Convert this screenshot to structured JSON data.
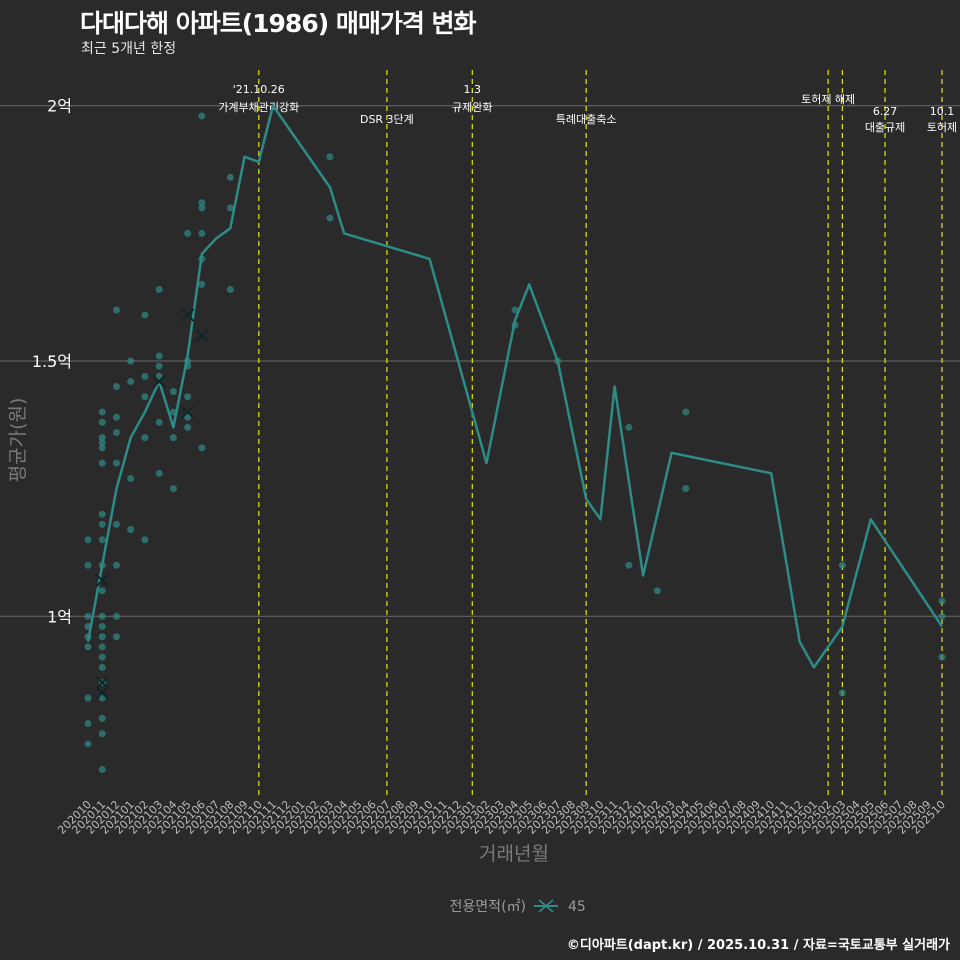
{
  "title": "다대다해 아파트(1986) 매매가격 변화",
  "subtitle": "최근 5개년 한정",
  "footer": "©디아파트(dapt.kr) / 2025.10.31 / 자료=국토교통부 실거래가",
  "colors": {
    "background": "#2b2a2b",
    "series": "#2e8b88",
    "event_line": "#e6e600",
    "grid": "#6b6b6b",
    "text": "#ffffff",
    "axis_text": "#bbbbbb"
  },
  "chart_data": {
    "type": "line",
    "title": "다대다해 아파트(1986) 매매가격 변화",
    "xlabel": "거래년월",
    "ylabel": "평균가(원)",
    "ylim": [
      0.65,
      2.07
    ],
    "y_unit": "억",
    "y_ticks": [
      {
        "value": 1.0,
        "label": "1억"
      },
      {
        "value": 1.5,
        "label": "1.5억"
      },
      {
        "value": 2.0,
        "label": "2억"
      }
    ],
    "categories": [
      "202010",
      "202011",
      "202012",
      "202101",
      "202102",
      "202103",
      "202104",
      "202105",
      "202106",
      "202107",
      "202108",
      "202109",
      "202110",
      "202111",
      "202112",
      "202201",
      "202202",
      "202203",
      "202204",
      "202205",
      "202206",
      "202207",
      "202208",
      "202209",
      "202210",
      "202211",
      "202212",
      "202301",
      "202302",
      "202303",
      "202304",
      "202305",
      "202306",
      "202307",
      "202308",
      "202309",
      "202310",
      "202311",
      "202312",
      "202401",
      "202402",
      "202403",
      "202404",
      "202405",
      "202406",
      "202407",
      "202408",
      "202409",
      "202410",
      "202411",
      "202412",
      "202501",
      "202502",
      "202503",
      "202504",
      "202505",
      "202506",
      "202507",
      "202508",
      "202509",
      "202510"
    ],
    "legend": {
      "title": "전용면적(㎡)",
      "entries": [
        "45"
      ],
      "position": "bottom"
    },
    "series": [
      {
        "name": "45",
        "line": [
          [
            "202010",
            0.95
          ],
          [
            "202011",
            1.1
          ],
          [
            "202012",
            1.25
          ],
          [
            "202101",
            1.35
          ],
          [
            "202102",
            1.4
          ],
          [
            "202103",
            1.46
          ],
          [
            "202104",
            1.37
          ],
          [
            "202105",
            1.51
          ],
          [
            "202106",
            1.71
          ],
          [
            "202107",
            1.74
          ],
          [
            "202108",
            1.76
          ],
          [
            "202109",
            1.9
          ],
          [
            "202110",
            1.89
          ],
          [
            "202111",
            2.0
          ],
          [
            "202203",
            1.84
          ],
          [
            "202204",
            1.75
          ],
          [
            "202210",
            1.7
          ],
          [
            "202302",
            1.3
          ],
          [
            "202304",
            1.58
          ],
          [
            "202305",
            1.65
          ],
          [
            "202307",
            1.5
          ],
          [
            "202309",
            1.23
          ],
          [
            "202310",
            1.19
          ],
          [
            "202311",
            1.45
          ],
          [
            "202401",
            1.08
          ],
          [
            "202403",
            1.32
          ],
          [
            "202410",
            1.28
          ],
          [
            "202412",
            0.95
          ],
          [
            "202501",
            0.9
          ],
          [
            "202503",
            0.98
          ],
          [
            "202505",
            1.19
          ],
          [
            "202510",
            0.98
          ]
        ],
        "points": [
          [
            "202010",
            0.75
          ],
          [
            "202010",
            0.79
          ],
          [
            "202010",
            0.84
          ],
          [
            "202010",
            0.94
          ],
          [
            "202010",
            0.96
          ],
          [
            "202010",
            0.98
          ],
          [
            "202010",
            1.0
          ],
          [
            "202010",
            1.1
          ],
          [
            "202010",
            1.15
          ],
          [
            "202011",
            0.7
          ],
          [
            "202011",
            0.77
          ],
          [
            "202011",
            0.8
          ],
          [
            "202011",
            0.84
          ],
          [
            "202011",
            0.87
          ],
          [
            "202011",
            0.9
          ],
          [
            "202011",
            0.92
          ],
          [
            "202011",
            0.94
          ],
          [
            "202011",
            0.96
          ],
          [
            "202011",
            0.98
          ],
          [
            "202011",
            1.0
          ],
          [
            "202011",
            1.05
          ],
          [
            "202011",
            1.1
          ],
          [
            "202011",
            1.15
          ],
          [
            "202011",
            1.18
          ],
          [
            "202011",
            1.2
          ],
          [
            "202011",
            1.3
          ],
          [
            "202011",
            1.33
          ],
          [
            "202011",
            1.34
          ],
          [
            "202011",
            1.35
          ],
          [
            "202011",
            1.38
          ],
          [
            "202011",
            1.4
          ],
          [
            "202012",
            0.96
          ],
          [
            "202012",
            1.0
          ],
          [
            "202012",
            1.1
          ],
          [
            "202012",
            1.18
          ],
          [
            "202012",
            1.3
          ],
          [
            "202012",
            1.36
          ],
          [
            "202012",
            1.39
          ],
          [
            "202012",
            1.45
          ],
          [
            "202012",
            1.6
          ],
          [
            "202101",
            1.17
          ],
          [
            "202101",
            1.27
          ],
          [
            "202101",
            1.46
          ],
          [
            "202101",
            1.5
          ],
          [
            "202102",
            1.15
          ],
          [
            "202102",
            1.35
          ],
          [
            "202102",
            1.43
          ],
          [
            "202102",
            1.47
          ],
          [
            "202102",
            1.59
          ],
          [
            "202103",
            1.28
          ],
          [
            "202103",
            1.38
          ],
          [
            "202103",
            1.47
          ],
          [
            "202103",
            1.49
          ],
          [
            "202103",
            1.51
          ],
          [
            "202103",
            1.64
          ],
          [
            "202104",
            1.25
          ],
          [
            "202104",
            1.35
          ],
          [
            "202104",
            1.4
          ],
          [
            "202104",
            1.44
          ],
          [
            "202105",
            1.37
          ],
          [
            "202105",
            1.39
          ],
          [
            "202105",
            1.43
          ],
          [
            "202105",
            1.49
          ],
          [
            "202105",
            1.5
          ],
          [
            "202105",
            1.75
          ],
          [
            "202106",
            1.33
          ],
          [
            "202106",
            1.65
          ],
          [
            "202106",
            1.7
          ],
          [
            "202106",
            1.75
          ],
          [
            "202106",
            1.8
          ],
          [
            "202106",
            1.81
          ],
          [
            "202106",
            1.98
          ],
          [
            "202108",
            1.64
          ],
          [
            "202108",
            1.8
          ],
          [
            "202108",
            1.86
          ],
          [
            "202203",
            1.78
          ],
          [
            "202203",
            1.9
          ],
          [
            "202304",
            1.57
          ],
          [
            "202304",
            1.6
          ],
          [
            "202307",
            1.5
          ],
          [
            "202312",
            1.37
          ],
          [
            "202312",
            1.1
          ],
          [
            "202402",
            1.05
          ],
          [
            "202404",
            1.25
          ],
          [
            "202404",
            1.4
          ],
          [
            "202503",
            0.85
          ],
          [
            "202503",
            1.1
          ],
          [
            "202510",
            0.92
          ],
          [
            "202510",
            1.0
          ],
          [
            "202510",
            1.03
          ]
        ],
        "cross_marks": [
          [
            "202011",
            0.85
          ],
          [
            "202011",
            0.87
          ],
          [
            "202011",
            1.07
          ],
          [
            "202103",
            1.46
          ],
          [
            "202105",
            1.4
          ],
          [
            "202105",
            1.59
          ],
          [
            "202106",
            1.55
          ]
        ]
      }
    ],
    "events": [
      {
        "date": "202110",
        "label_line1": "'21.10.26",
        "label_line2": "가계부채관리강화"
      },
      {
        "date": "202207",
        "label_line1": "",
        "label_line2": "DSR 3단계"
      },
      {
        "date": "202301",
        "label_line1": "1.3",
        "label_line2": "규제완화"
      },
      {
        "date": "202309",
        "label_line1": "",
        "label_line2": "특례대출축소"
      },
      {
        "date": "202502",
        "label_line1": "토허제 해제",
        "label_line2": ""
      },
      {
        "date": "202503",
        "label_line1": "",
        "label_line2": ""
      },
      {
        "date": "202506",
        "label_line1": "6.27",
        "label_line2": "대출규제"
      },
      {
        "date": "202510",
        "label_line1": "10.1",
        "label_line2": "토허제"
      }
    ]
  }
}
